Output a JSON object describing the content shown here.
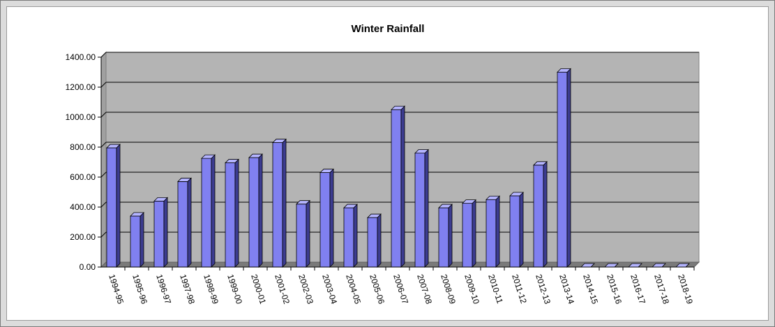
{
  "chart_data": {
    "type": "bar",
    "title": "Winter Rainfall",
    "xlabel": "",
    "ylabel": "",
    "ylim": [
      0,
      1400
    ],
    "y_ticks": [
      "0.00",
      "200.00",
      "400.00",
      "600.00",
      "800.00",
      "1000.00",
      "1200.00",
      "1400.00"
    ],
    "grid": true,
    "style": "3d",
    "categories": [
      "1994-95",
      "1995-96",
      "1996-97",
      "1997-98",
      "1998-99",
      "1999-00",
      "2000-01",
      "2001-02",
      "2002-03",
      "2003-04",
      "2004-05",
      "2005-06",
      "2006-07",
      "2007-08",
      "2008-09",
      "2009-10",
      "2010-11",
      "2011-12",
      "2012-13",
      "2013-14",
      "2014-15",
      "2015-16",
      "2016-17",
      "2017-18",
      "2018-19"
    ],
    "values": [
      795,
      340,
      440,
      570,
      725,
      695,
      730,
      830,
      420,
      630,
      395,
      330,
      1050,
      760,
      395,
      425,
      450,
      475,
      680,
      1300,
      0,
      0,
      0,
      0,
      0
    ],
    "colors": {
      "bar_front": "#8080f0",
      "bar_side": "#3c3c90",
      "bar_top": "#b4b4ff",
      "plot_back": "#b4b4b4",
      "plot_side": "#a0a0a0",
      "floor": "#7a7a7a",
      "gridline": "#000000"
    }
  }
}
